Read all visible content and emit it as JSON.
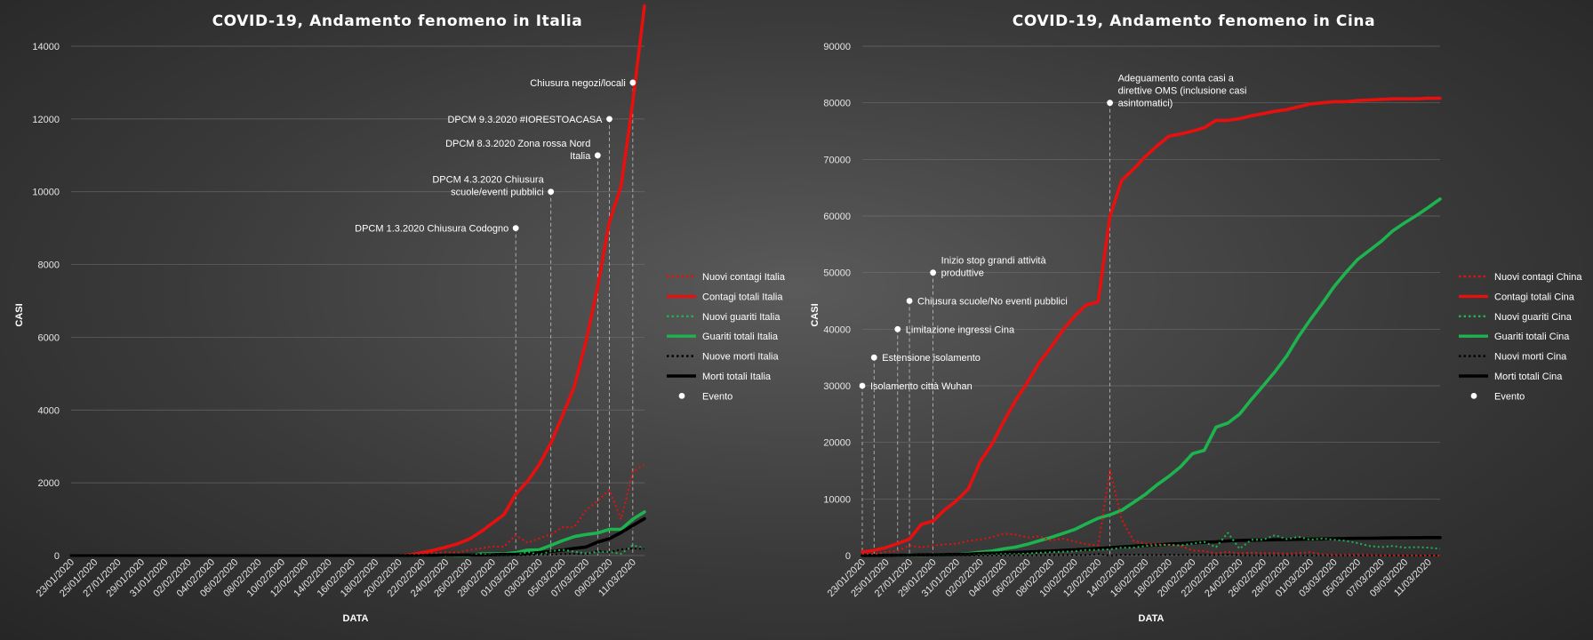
{
  "chart_data": [
    {
      "type": "line",
      "title": "COVID-19,  Andamento  fenomeno  in  Italia",
      "xlabel": "DATA",
      "ylabel": "CASI",
      "ylim": [
        0,
        14000
      ],
      "yticks": [
        0,
        2000,
        4000,
        6000,
        8000,
        10000,
        12000,
        14000
      ],
      "grid": true,
      "legend_position": "right",
      "x": [
        "23/01/2020",
        "24/01/2020",
        "25/01/2020",
        "26/01/2020",
        "27/01/2020",
        "28/01/2020",
        "29/01/2020",
        "30/01/2020",
        "31/01/2020",
        "01/02/2020",
        "02/02/2020",
        "03/02/2020",
        "04/02/2020",
        "05/02/2020",
        "06/02/2020",
        "07/02/2020",
        "08/02/2020",
        "09/02/2020",
        "10/02/2020",
        "11/02/2020",
        "12/02/2020",
        "13/02/2020",
        "14/02/2020",
        "15/02/2020",
        "16/02/2020",
        "17/02/2020",
        "18/02/2020",
        "19/02/2020",
        "20/02/2020",
        "21/02/2020",
        "22/02/2020",
        "23/02/2020",
        "24/02/2020",
        "25/02/2020",
        "26/02/2020",
        "27/02/2020",
        "28/02/2020",
        "29/02/2020",
        "01/03/2020",
        "02/03/2020",
        "03/03/2020",
        "04/03/2020",
        "05/03/2020",
        "06/03/2020",
        "07/03/2020",
        "08/03/2020",
        "09/03/2020",
        "10/03/2020",
        "11/03/2020",
        "12/03/2020"
      ],
      "xticks": [
        "23/01/2020",
        "25/01/2020",
        "27/01/2020",
        "29/01/2020",
        "31/01/2020",
        "02/02/2020",
        "04/02/2020",
        "06/02/2020",
        "08/02/2020",
        "10/02/2020",
        "12/02/2020",
        "14/02/2020",
        "16/02/2020",
        "18/02/2020",
        "20/02/2020",
        "22/02/2020",
        "24/02/2020",
        "26/02/2020",
        "28/02/2020",
        "01/03/2020",
        "03/03/2020",
        "05/03/2020",
        "07/03/2020",
        "09/03/2020",
        "11/03/2020"
      ],
      "series": [
        {
          "name": "Nuovi contagi Italia",
          "color": "#e8100f",
          "style": "dotted",
          "values": [
            0,
            0,
            0,
            0,
            0,
            0,
            0,
            0,
            0,
            0,
            0,
            0,
            0,
            0,
            0,
            0,
            0,
            0,
            0,
            0,
            0,
            0,
            0,
            0,
            0,
            0,
            0,
            0,
            0,
            20,
            60,
            70,
            90,
            80,
            150,
            200,
            250,
            240,
            560,
            350,
            470,
            590,
            780,
            780,
            1250,
            1500,
            1800,
            1000,
            2300,
            2500
          ]
        },
        {
          "name": "Contagi totali Italia",
          "color": "#e8100f",
          "style": "solid",
          "values": [
            0,
            0,
            0,
            0,
            0,
            0,
            0,
            0,
            0,
            0,
            0,
            0,
            0,
            0,
            0,
            0,
            0,
            0,
            0,
            0,
            0,
            0,
            0,
            0,
            0,
            0,
            0,
            0,
            0,
            20,
            80,
            150,
            230,
            320,
            450,
            650,
            890,
            1130,
            1690,
            2040,
            2500,
            3090,
            3860,
            4640,
            5880,
            7380,
            9170,
            10150,
            12460,
            15110
          ]
        },
        {
          "name": "Nuovi guariti Italia",
          "color": "#1db34f",
          "style": "dotted",
          "values": [
            0,
            0,
            0,
            0,
            0,
            0,
            0,
            0,
            0,
            0,
            0,
            0,
            0,
            0,
            0,
            0,
            0,
            0,
            0,
            0,
            0,
            0,
            0,
            0,
            0,
            0,
            0,
            0,
            0,
            0,
            0,
            0,
            0,
            0,
            0,
            40,
            10,
            5,
            0,
            100,
            20,
            120,
            160,
            110,
            60,
            100,
            100,
            50,
            280,
            200
          ]
        },
        {
          "name": "Guariti totali Italia",
          "color": "#1db34f",
          "style": "solid",
          "values": [
            0,
            0,
            0,
            0,
            0,
            0,
            0,
            0,
            0,
            0,
            0,
            0,
            0,
            0,
            0,
            0,
            0,
            0,
            0,
            0,
            0,
            0,
            0,
            0,
            0,
            0,
            0,
            0,
            0,
            0,
            0,
            0,
            0,
            0,
            0,
            45,
            50,
            50,
            80,
            150,
            160,
            280,
            410,
            520,
            580,
            620,
            720,
            720,
            1000,
            1200
          ]
        },
        {
          "name": "Nuove morti Italia",
          "color": "#000000",
          "style": "dotted",
          "values": [
            0,
            0,
            0,
            0,
            0,
            0,
            0,
            0,
            0,
            0,
            0,
            0,
            0,
            0,
            0,
            0,
            0,
            0,
            0,
            0,
            0,
            0,
            0,
            0,
            0,
            0,
            0,
            0,
            0,
            2,
            2,
            1,
            4,
            3,
            2,
            5,
            4,
            8,
            5,
            18,
            27,
            28,
            41,
            49,
            36,
            133,
            97,
            168,
            196,
            189
          ]
        },
        {
          "name": "Morti totali Italia",
          "color": "#000000",
          "style": "solid",
          "values": [
            0,
            0,
            0,
            0,
            0,
            0,
            0,
            0,
            0,
            0,
            0,
            0,
            0,
            0,
            0,
            0,
            0,
            0,
            0,
            0,
            0,
            0,
            0,
            0,
            0,
            0,
            0,
            0,
            0,
            2,
            4,
            5,
            9,
            12,
            14,
            19,
            23,
            31,
            36,
            54,
            81,
            109,
            150,
            199,
            235,
            368,
            465,
            633,
            827,
            1016
          ]
        }
      ],
      "events": [
        {
          "x": "01/03/2020",
          "y": 9000,
          "label": [
            "DPCM 1.3.2020 Chiusura Codogno"
          ]
        },
        {
          "x": "04/03/2020",
          "y": 10000,
          "label": [
            "DPCM 4.3.2020 Chiusura",
            "scuole/eventi pubblici"
          ]
        },
        {
          "x": "08/03/2020",
          "y": 11000,
          "label": [
            "DPCM 8.3.2020 Zona rossa Nord",
            "Italia"
          ]
        },
        {
          "x": "09/03/2020",
          "y": 12000,
          "label": [
            "DPCM 9.3.2020 #IORESTOACASA"
          ]
        },
        {
          "x": "11/03/2020",
          "y": 13000,
          "label": [
            "Chiusura negozi/locali"
          ]
        }
      ],
      "event_legend": "Evento"
    },
    {
      "type": "line",
      "title": "COVID-19,  Andamento  fenomeno  in  Cina",
      "xlabel": "DATA",
      "ylabel": "CASI",
      "ylim": [
        0,
        90000
      ],
      "yticks": [
        0,
        10000,
        20000,
        30000,
        40000,
        50000,
        60000,
        70000,
        80000,
        90000
      ],
      "grid": true,
      "legend_position": "right",
      "x": [
        "23/01/2020",
        "24/01/2020",
        "25/01/2020",
        "26/01/2020",
        "27/01/2020",
        "28/01/2020",
        "29/01/2020",
        "30/01/2020",
        "31/01/2020",
        "01/02/2020",
        "02/02/2020",
        "03/02/2020",
        "04/02/2020",
        "05/02/2020",
        "06/02/2020",
        "07/02/2020",
        "08/02/2020",
        "09/02/2020",
        "10/02/2020",
        "11/02/2020",
        "12/02/2020",
        "13/02/2020",
        "14/02/2020",
        "15/02/2020",
        "16/02/2020",
        "17/02/2020",
        "18/02/2020",
        "19/02/2020",
        "20/02/2020",
        "21/02/2020",
        "22/02/2020",
        "23/02/2020",
        "24/02/2020",
        "25/02/2020",
        "26/02/2020",
        "27/02/2020",
        "28/02/2020",
        "29/02/2020",
        "01/03/2020",
        "02/03/2020",
        "03/03/2020",
        "04/03/2020",
        "05/03/2020",
        "06/03/2020",
        "07/03/2020",
        "08/03/2020",
        "09/03/2020",
        "10/03/2020",
        "11/03/2020",
        "12/03/2020"
      ],
      "xticks": [
        "23/01/2020",
        "25/01/2020",
        "27/01/2020",
        "29/01/2020",
        "31/01/2020",
        "02/02/2020",
        "04/02/2020",
        "06/02/2020",
        "08/02/2020",
        "10/02/2020",
        "12/02/2020",
        "14/02/2020",
        "16/02/2020",
        "18/02/2020",
        "20/02/2020",
        "22/02/2020",
        "24/02/2020",
        "26/02/2020",
        "28/02/2020",
        "01/03/2020",
        "03/03/2020",
        "05/03/2020",
        "07/03/2020",
        "09/03/2020",
        "11/03/2020"
      ],
      "series": [
        {
          "name": "Nuovi contagi China",
          "color": "#e8100f",
          "style": "dotted",
          "values": [
            250,
            250,
            680,
            790,
            1770,
            1460,
            1740,
            1980,
            2100,
            2590,
            2820,
            3230,
            3890,
            3700,
            3200,
            3400,
            2650,
            3000,
            2500,
            2000,
            1800,
            15100,
            6400,
            2600,
            2100,
            2000,
            1900,
            1750,
            900,
            800,
            400,
            650,
            400,
            500,
            400,
            430,
            330,
            430,
            575,
            200,
            120,
            120,
            140,
            100,
            50,
            45,
            40,
            20,
            25,
            20
          ]
        },
        {
          "name": "Contagi totali Cina",
          "color": "#e8100f",
          "style": "solid",
          "values": [
            640,
            920,
            1400,
            2100,
            2900,
            5500,
            6100,
            8100,
            9700,
            11800,
            16600,
            19700,
            23700,
            27400,
            30600,
            34100,
            36800,
            39800,
            42300,
            44300,
            44800,
            59900,
            66300,
            68300,
            70500,
            72400,
            74100,
            74500,
            75000,
            75600,
            76900,
            76900,
            77200,
            77700,
            78100,
            78500,
            78800,
            79300,
            79800,
            80000,
            80200,
            80200,
            80400,
            80500,
            80600,
            80700,
            80700,
            80700,
            80800,
            80800
          ]
        },
        {
          "name": "Nuovi guariti Cina",
          "color": "#1db34f",
          "style": "dotted",
          "values": [
            0,
            10,
            10,
            10,
            20,
            40,
            20,
            40,
            50,
            80,
            140,
            160,
            270,
            250,
            350,
            480,
            580,
            690,
            740,
            1000,
            1000,
            1100,
            1400,
            1400,
            1700,
            1800,
            1900,
            1800,
            2100,
            2400,
            1500,
            4000,
            1200,
            2800,
            2800,
            3600,
            2900,
            3300,
            2800,
            3000,
            2800,
            2600,
            2200,
            1700,
            1500,
            1700,
            1400,
            1500,
            1400,
            1200
          ]
        },
        {
          "name": "Guariti totali Cina",
          "color": "#1db34f",
          "style": "solid",
          "values": [
            30,
            40,
            40,
            50,
            60,
            100,
            120,
            170,
            240,
            340,
            600,
            800,
            1200,
            1500,
            2000,
            2600,
            3200,
            3900,
            4600,
            5600,
            6600,
            7200,
            8000,
            9400,
            10800,
            12500,
            14000,
            15700,
            18000,
            18600,
            22700,
            23400,
            25000,
            27600,
            30000,
            32500,
            35300,
            38700,
            41700,
            44500,
            47500,
            50000,
            52300,
            53900,
            55500,
            57400,
            58800,
            60100,
            61500,
            63000
          ]
        },
        {
          "name": "Nuovi morti Cina",
          "color": "#000000",
          "style": "dotted",
          "values": [
            8,
            16,
            15,
            24,
            26,
            26,
            38,
            43,
            46,
            45,
            57,
            64,
            65,
            73,
            73,
            86,
            89,
            97,
            108,
            97,
            254,
            13,
            143,
            142,
            105,
            98,
            136,
            114,
            118,
            109,
            97,
            150,
            71,
            52,
            29,
            44,
            47,
            35,
            42,
            31,
            38,
            31,
            30,
            28,
            27,
            22,
            17,
            22,
            11,
            8
          ]
        },
        {
          "name": "Morti totali Cina",
          "color": "#000000",
          "style": "solid",
          "values": [
            18,
            26,
            42,
            56,
            82,
            131,
            133,
            171,
            213,
            259,
            361,
            425,
            490,
            562,
            632,
            717,
            806,
            908,
            1016,
            1113,
            1259,
            1380,
            1523,
            1665,
            1770,
            1868,
            2004,
            2118,
            2236,
            2345,
            2442,
            2592,
            2663,
            2715,
            2744,
            2788,
            2835,
            2870,
            2912,
            2943,
            2981,
            3012,
            3042,
            3070,
            3097,
            3119,
            3136,
            3158,
            3169,
            3176
          ]
        }
      ],
      "events": [
        {
          "x": "23/01/2020",
          "y": 30000,
          "label": [
            "Isolamento città Wuhan"
          ]
        },
        {
          "x": "24/01/2020",
          "y": 35000,
          "label": [
            "Estensione isolamento"
          ]
        },
        {
          "x": "26/01/2020",
          "y": 40000,
          "label": [
            "Limitazione ingressi Cina"
          ]
        },
        {
          "x": "27/01/2020",
          "y": 45000,
          "label": [
            "Chiusura scuole/No eventi pubblici"
          ]
        },
        {
          "x": "29/01/2020",
          "y": 50000,
          "label": [
            "Inizio stop grandi attività",
            "produttive"
          ]
        },
        {
          "x": "13/02/2020",
          "y": 80000,
          "label": [
            "Adeguamento conta casi a",
            "direttive OMS (inclusione casi",
            "asintomatici)"
          ]
        }
      ],
      "event_legend": "Evento"
    }
  ]
}
